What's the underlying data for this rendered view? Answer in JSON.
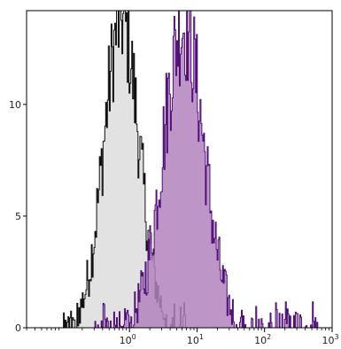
{
  "chart_data": {
    "type": "histogram-overlay",
    "x_scale": "log",
    "xlim": [
      0.03,
      1000
    ],
    "ylim": [
      0,
      14.2
    ],
    "x_ticks": [
      {
        "value": 1,
        "base": "10",
        "exp": "0"
      },
      {
        "value": 10,
        "base": "10",
        "exp": "1"
      },
      {
        "value": 100,
        "base": "10",
        "exp": "2"
      },
      {
        "value": 1000,
        "base": "10",
        "exp": "3"
      }
    ],
    "y_ticks": [
      0,
      5,
      10
    ],
    "series": [
      {
        "fill": "#e2e2e2",
        "stroke": "#111111",
        "peak_x": 0.75,
        "peak_y": 13.8,
        "sigma_log10": 0.26,
        "x_min": 0.1,
        "x_max": 8,
        "noise": 2.4
      },
      {
        "fill": "#b184bd",
        "stroke": "#52107a",
        "peak_x": 6.2,
        "peak_y": 13.6,
        "sigma_log10": 0.3,
        "x_min": 0.3,
        "x_max": 600,
        "noise": 2.6
      }
    ]
  }
}
